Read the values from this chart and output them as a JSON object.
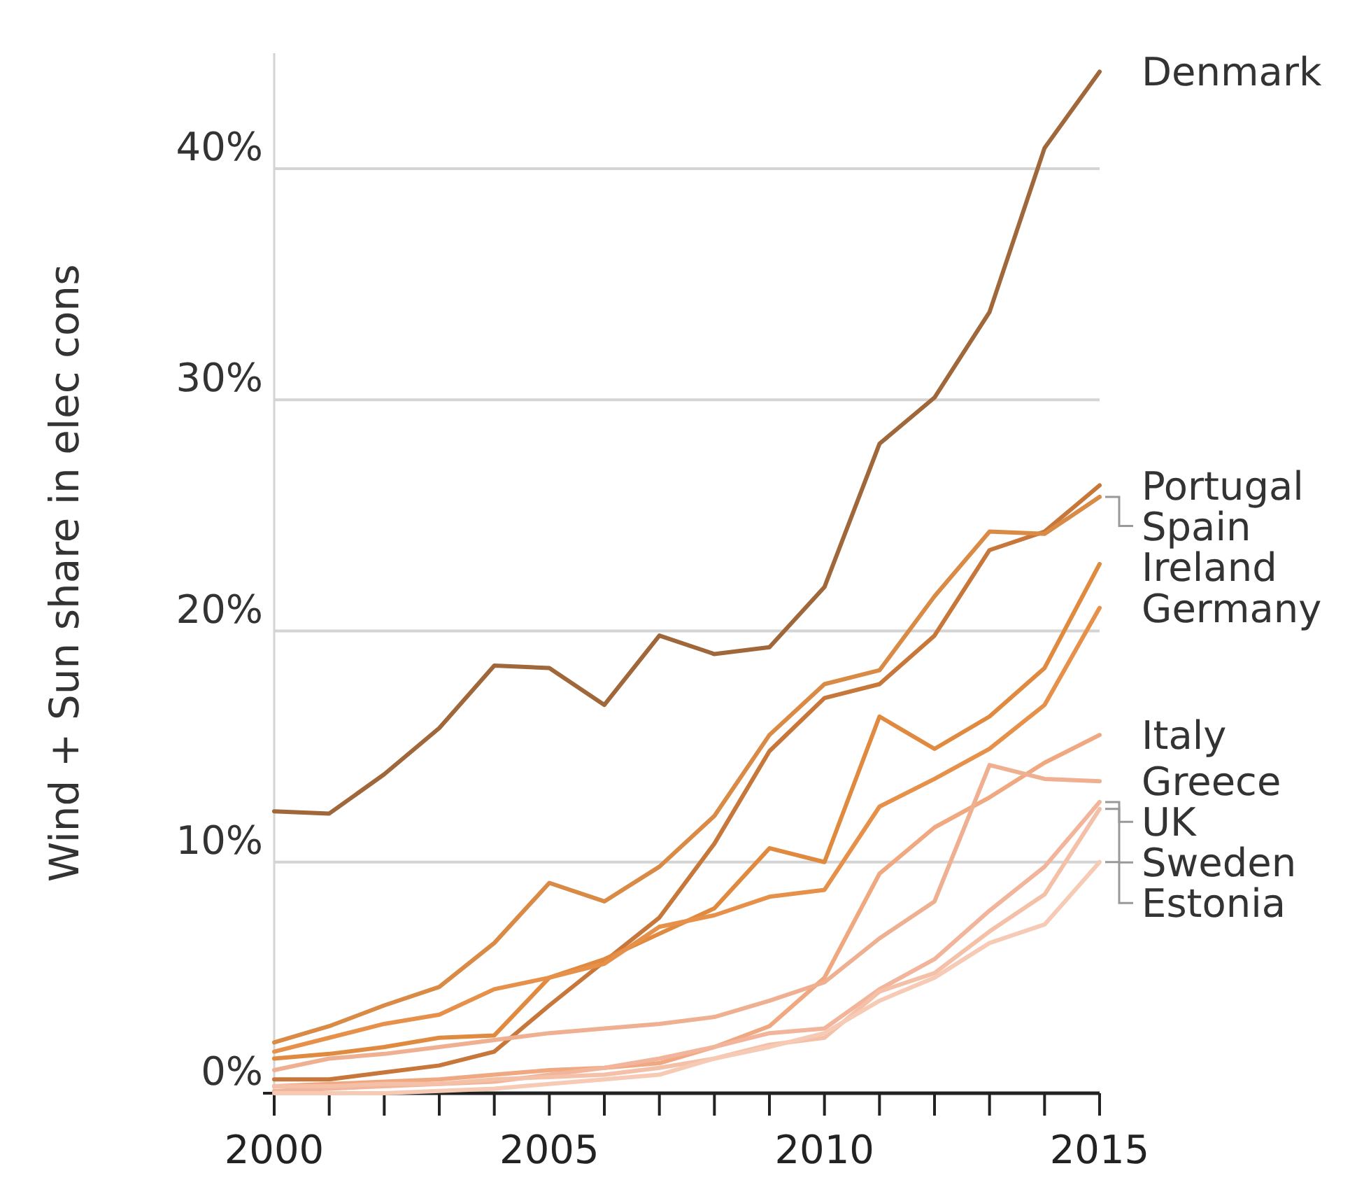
{
  "chart_data": {
    "type": "line",
    "ylabel": "Wind + Sun share in elec cons",
    "x": [
      2000,
      2001,
      2002,
      2003,
      2004,
      2005,
      2006,
      2007,
      2008,
      2009,
      2010,
      2011,
      2012,
      2013,
      2014,
      2015
    ],
    "xlim": [
      2000,
      2015
    ],
    "xticks": [
      2000,
      {
        "value": 2001,
        "label": null
      },
      {
        "value": 2002,
        "label": null
      },
      {
        "value": 2003,
        "label": null
      },
      {
        "value": 2004,
        "label": null
      },
      2005,
      {
        "value": 2006,
        "label": null
      },
      {
        "value": 2007,
        "label": null
      },
      {
        "value": 2008,
        "label": null
      },
      {
        "value": 2009,
        "label": null
      },
      2010,
      {
        "value": 2011,
        "label": null
      },
      {
        "value": 2012,
        "label": null
      },
      {
        "value": 2013,
        "label": null
      },
      {
        "value": 2014,
        "label": null
      },
      2015
    ],
    "ylim": [
      0,
      45
    ],
    "yticks": [
      {
        "value": 0,
        "label": "0%"
      },
      {
        "value": 10,
        "label": "10%"
      },
      {
        "value": 20,
        "label": "20%"
      },
      {
        "value": 30,
        "label": "30%"
      },
      {
        "value": 40,
        "label": "40%"
      }
    ],
    "grid": "y",
    "legend": false,
    "marker": "none",
    "line_style": "solid",
    "series": [
      {
        "name": "Denmark",
        "color": "#a0683a",
        "values": [
          12.2,
          12.1,
          13.8,
          15.8,
          18.5,
          18.4,
          16.8,
          19.8,
          19.0,
          19.3,
          21.9,
          28.1,
          30.1,
          33.8,
          40.9,
          44.2
        ]
      },
      {
        "name": "Portugal",
        "color": "#c8773a",
        "values": [
          0.6,
          0.6,
          0.9,
          1.2,
          1.8,
          3.8,
          5.7,
          7.6,
          10.8,
          14.8,
          17.1,
          17.7,
          19.8,
          23.5,
          24.3,
          26.3
        ]
      },
      {
        "name": "Spain",
        "color": "#d98a44",
        "values": [
          2.2,
          2.9,
          3.8,
          4.6,
          6.5,
          9.1,
          8.3,
          9.8,
          12.0,
          15.5,
          17.7,
          18.3,
          21.5,
          24.3,
          24.2,
          25.8
        ]
      },
      {
        "name": "Ireland",
        "color": "#e08a40",
        "values": [
          1.5,
          1.7,
          2.0,
          2.4,
          2.5,
          5.0,
          5.8,
          6.9,
          8.0,
          10.6,
          10.0,
          16.3,
          14.9,
          16.3,
          18.4,
          22.9
        ]
      },
      {
        "name": "Germany",
        "color": "#e6904a",
        "values": [
          1.8,
          2.4,
          3.0,
          3.4,
          4.5,
          5.0,
          5.6,
          7.2,
          7.7,
          8.5,
          8.8,
          12.4,
          13.6,
          14.9,
          16.8,
          21.0
        ]
      },
      {
        "name": "Italy",
        "color": "#f0a880",
        "values": [
          0.3,
          0.4,
          0.5,
          0.6,
          0.8,
          1.0,
          1.1,
          1.3,
          2.0,
          2.9,
          5.0,
          9.5,
          11.5,
          12.8,
          14.3,
          15.5
        ]
      },
      {
        "name": "Greece",
        "color": "#eeb090",
        "values": [
          1.0,
          1.5,
          1.7,
          2.0,
          2.3,
          2.6,
          2.8,
          3.0,
          3.3,
          4.0,
          4.8,
          6.7,
          8.3,
          14.2,
          13.6,
          13.5
        ]
      },
      {
        "name": "UK",
        "color": "#f2b49a",
        "values": [
          0.1,
          0.2,
          0.3,
          0.4,
          0.5,
          0.8,
          1.1,
          1.5,
          2.0,
          2.6,
          2.8,
          4.5,
          5.8,
          7.9,
          9.8,
          12.6
        ]
      },
      {
        "name": "Sweden",
        "color": "#f4c0a8",
        "values": [
          0.3,
          0.3,
          0.4,
          0.4,
          0.6,
          0.7,
          0.8,
          1.1,
          1.5,
          2.1,
          2.4,
          4.4,
          5.2,
          7.0,
          8.6,
          12.3
        ]
      },
      {
        "name": "Estonia",
        "color": "#f6cab5",
        "values": [
          0.0,
          0.0,
          0.0,
          0.1,
          0.2,
          0.4,
          0.6,
          0.8,
          1.5,
          2.0,
          2.6,
          4.0,
          5.0,
          6.5,
          7.3,
          10.0
        ]
      }
    ]
  }
}
